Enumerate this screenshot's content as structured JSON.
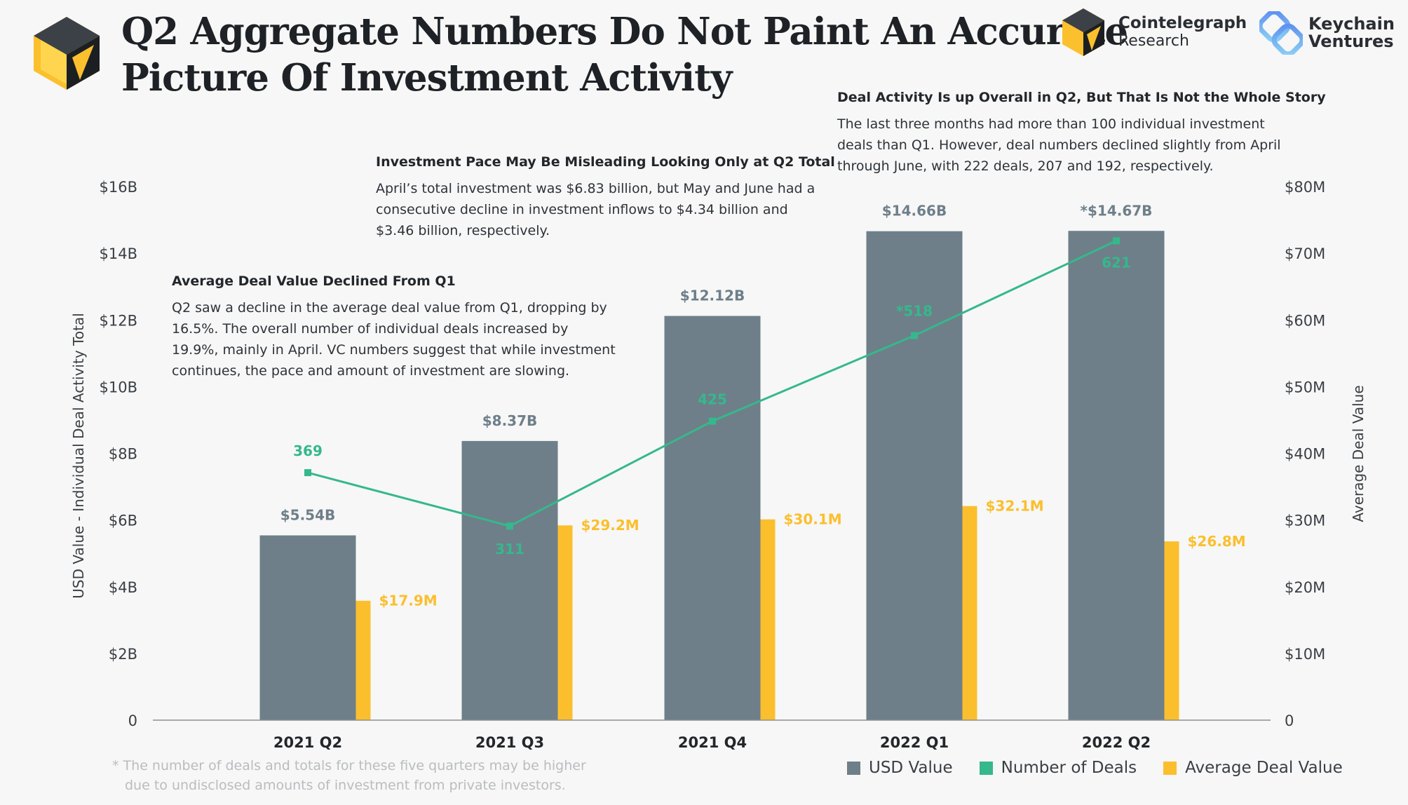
{
  "title_line1": "Q2 Aggregate Numbers Do Not Paint An Accurate",
  "title_line2": "Picture Of Investment Activity",
  "brands": {
    "cointelegraph_name": "Cointelegraph",
    "cointelegraph_sub": "Research",
    "keychain_line1": "Keychain",
    "keychain_line2": "Ventures"
  },
  "annotations": {
    "deal_activity": {
      "heading": "Deal Activity Is up Overall in Q2, But That Is Not the Whole Story",
      "lines": [
        "The last three months had more than 100 individual investment",
        "deals than Q1. However, deal numbers declined slightly from April",
        "through June, with 222 deals, 207 and 192, respectively."
      ]
    },
    "investment_pace": {
      "heading": "Investment Pace May Be Misleading Looking Only at Q2 Total",
      "lines": [
        "April’s total investment was $6.83 billion, but May and June had a",
        "consecutive decline in investment inflows to $4.34 billion and",
        "$3.46 billion, respectively."
      ]
    },
    "avg_deal": {
      "heading": "Average Deal Value Declined From Q1",
      "lines": [
        "Q2 saw a decline in the average deal value from Q1, dropping by",
        "16.5%. The overall number of individual deals increased by",
        "19.9%, mainly in April. VC numbers suggest that while investment",
        "continues, the pace and amount of investment are slowing."
      ]
    }
  },
  "footnote_lines": [
    "* The number of deals and totals for these five quarters may be higher",
    "due to undisclosed amounts of investment from private investors."
  ],
  "colors": {
    "usd": "#6e7f89",
    "deals": "#35b88c",
    "avg": "#fbbf2e",
    "axis_text": "#3a3f44"
  },
  "chart_data": {
    "type": "bar",
    "categories": [
      "2021 Q2",
      "2021 Q3",
      "2021 Q4",
      "2022 Q1",
      "2022 Q2"
    ],
    "series": [
      {
        "name": "USD Value",
        "kind": "bar",
        "axis": "left",
        "values": [
          5.54,
          8.37,
          12.12,
          14.66,
          14.67
        ],
        "labels": [
          "$5.54B",
          "$8.37B",
          "$12.12B",
          "$14.66B",
          "*$14.67B"
        ]
      },
      {
        "name": "Average Deal Value",
        "kind": "bar",
        "axis": "right",
        "values": [
          17.9,
          29.2,
          30.1,
          32.1,
          26.8
        ],
        "labels": [
          "$17.9M",
          "$29.2M",
          "$30.1M",
          "$32.1M",
          "$26.8M"
        ]
      },
      {
        "name": "Number of Deals",
        "kind": "line",
        "axis": "deals",
        "values": [
          369,
          311,
          425,
          518,
          621
        ],
        "labels": [
          "369",
          "311",
          "425",
          "*518",
          "621"
        ]
      }
    ],
    "ylabel": "USD Value - Individual Deal Activity Total",
    "ylim": [
      0,
      16
    ],
    "yticks": [
      "0",
      "$2B",
      "$4B",
      "$6B",
      "$8B",
      "$10B",
      "$12B",
      "$14B",
      "$16B"
    ],
    "y2label": "Average Deal Value",
    "y2lim": [
      0,
      80
    ],
    "y2ticks": [
      "0",
      "$10M",
      "$20M",
      "$30M",
      "$40M",
      "$50M",
      "$60M",
      "$70M",
      "$80M"
    ],
    "legend_placement": "bottom-right",
    "grid": false
  }
}
